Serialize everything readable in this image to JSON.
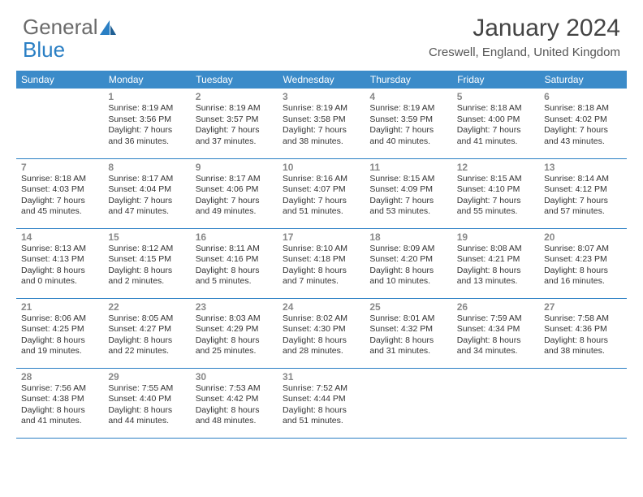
{
  "logo": {
    "part1": "General",
    "part2": "Blue"
  },
  "title": "January 2024",
  "location": "Creswell, England, United Kingdom",
  "header_bg": "#3b8bc9",
  "header_fg": "#ffffff",
  "rule_color": "#2a7fc4",
  "daynum_color": "#888888",
  "text_color": "#333333",
  "weekdays": [
    "Sunday",
    "Monday",
    "Tuesday",
    "Wednesday",
    "Thursday",
    "Friday",
    "Saturday"
  ],
  "weeks": [
    [
      null,
      {
        "n": "1",
        "sr": "Sunrise: 8:19 AM",
        "ss": "Sunset: 3:56 PM",
        "dl": "Daylight: 7 hours and 36 minutes."
      },
      {
        "n": "2",
        "sr": "Sunrise: 8:19 AM",
        "ss": "Sunset: 3:57 PM",
        "dl": "Daylight: 7 hours and 37 minutes."
      },
      {
        "n": "3",
        "sr": "Sunrise: 8:19 AM",
        "ss": "Sunset: 3:58 PM",
        "dl": "Daylight: 7 hours and 38 minutes."
      },
      {
        "n": "4",
        "sr": "Sunrise: 8:19 AM",
        "ss": "Sunset: 3:59 PM",
        "dl": "Daylight: 7 hours and 40 minutes."
      },
      {
        "n": "5",
        "sr": "Sunrise: 8:18 AM",
        "ss": "Sunset: 4:00 PM",
        "dl": "Daylight: 7 hours and 41 minutes."
      },
      {
        "n": "6",
        "sr": "Sunrise: 8:18 AM",
        "ss": "Sunset: 4:02 PM",
        "dl": "Daylight: 7 hours and 43 minutes."
      }
    ],
    [
      {
        "n": "7",
        "sr": "Sunrise: 8:18 AM",
        "ss": "Sunset: 4:03 PM",
        "dl": "Daylight: 7 hours and 45 minutes."
      },
      {
        "n": "8",
        "sr": "Sunrise: 8:17 AM",
        "ss": "Sunset: 4:04 PM",
        "dl": "Daylight: 7 hours and 47 minutes."
      },
      {
        "n": "9",
        "sr": "Sunrise: 8:17 AM",
        "ss": "Sunset: 4:06 PM",
        "dl": "Daylight: 7 hours and 49 minutes."
      },
      {
        "n": "10",
        "sr": "Sunrise: 8:16 AM",
        "ss": "Sunset: 4:07 PM",
        "dl": "Daylight: 7 hours and 51 minutes."
      },
      {
        "n": "11",
        "sr": "Sunrise: 8:15 AM",
        "ss": "Sunset: 4:09 PM",
        "dl": "Daylight: 7 hours and 53 minutes."
      },
      {
        "n": "12",
        "sr": "Sunrise: 8:15 AM",
        "ss": "Sunset: 4:10 PM",
        "dl": "Daylight: 7 hours and 55 minutes."
      },
      {
        "n": "13",
        "sr": "Sunrise: 8:14 AM",
        "ss": "Sunset: 4:12 PM",
        "dl": "Daylight: 7 hours and 57 minutes."
      }
    ],
    [
      {
        "n": "14",
        "sr": "Sunrise: 8:13 AM",
        "ss": "Sunset: 4:13 PM",
        "dl": "Daylight: 8 hours and 0 minutes."
      },
      {
        "n": "15",
        "sr": "Sunrise: 8:12 AM",
        "ss": "Sunset: 4:15 PM",
        "dl": "Daylight: 8 hours and 2 minutes."
      },
      {
        "n": "16",
        "sr": "Sunrise: 8:11 AM",
        "ss": "Sunset: 4:16 PM",
        "dl": "Daylight: 8 hours and 5 minutes."
      },
      {
        "n": "17",
        "sr": "Sunrise: 8:10 AM",
        "ss": "Sunset: 4:18 PM",
        "dl": "Daylight: 8 hours and 7 minutes."
      },
      {
        "n": "18",
        "sr": "Sunrise: 8:09 AM",
        "ss": "Sunset: 4:20 PM",
        "dl": "Daylight: 8 hours and 10 minutes."
      },
      {
        "n": "19",
        "sr": "Sunrise: 8:08 AM",
        "ss": "Sunset: 4:21 PM",
        "dl": "Daylight: 8 hours and 13 minutes."
      },
      {
        "n": "20",
        "sr": "Sunrise: 8:07 AM",
        "ss": "Sunset: 4:23 PM",
        "dl": "Daylight: 8 hours and 16 minutes."
      }
    ],
    [
      {
        "n": "21",
        "sr": "Sunrise: 8:06 AM",
        "ss": "Sunset: 4:25 PM",
        "dl": "Daylight: 8 hours and 19 minutes."
      },
      {
        "n": "22",
        "sr": "Sunrise: 8:05 AM",
        "ss": "Sunset: 4:27 PM",
        "dl": "Daylight: 8 hours and 22 minutes."
      },
      {
        "n": "23",
        "sr": "Sunrise: 8:03 AM",
        "ss": "Sunset: 4:29 PM",
        "dl": "Daylight: 8 hours and 25 minutes."
      },
      {
        "n": "24",
        "sr": "Sunrise: 8:02 AM",
        "ss": "Sunset: 4:30 PM",
        "dl": "Daylight: 8 hours and 28 minutes."
      },
      {
        "n": "25",
        "sr": "Sunrise: 8:01 AM",
        "ss": "Sunset: 4:32 PM",
        "dl": "Daylight: 8 hours and 31 minutes."
      },
      {
        "n": "26",
        "sr": "Sunrise: 7:59 AM",
        "ss": "Sunset: 4:34 PM",
        "dl": "Daylight: 8 hours and 34 minutes."
      },
      {
        "n": "27",
        "sr": "Sunrise: 7:58 AM",
        "ss": "Sunset: 4:36 PM",
        "dl": "Daylight: 8 hours and 38 minutes."
      }
    ],
    [
      {
        "n": "28",
        "sr": "Sunrise: 7:56 AM",
        "ss": "Sunset: 4:38 PM",
        "dl": "Daylight: 8 hours and 41 minutes."
      },
      {
        "n": "29",
        "sr": "Sunrise: 7:55 AM",
        "ss": "Sunset: 4:40 PM",
        "dl": "Daylight: 8 hours and 44 minutes."
      },
      {
        "n": "30",
        "sr": "Sunrise: 7:53 AM",
        "ss": "Sunset: 4:42 PM",
        "dl": "Daylight: 8 hours and 48 minutes."
      },
      {
        "n": "31",
        "sr": "Sunrise: 7:52 AM",
        "ss": "Sunset: 4:44 PM",
        "dl": "Daylight: 8 hours and 51 minutes."
      },
      null,
      null,
      null
    ]
  ]
}
